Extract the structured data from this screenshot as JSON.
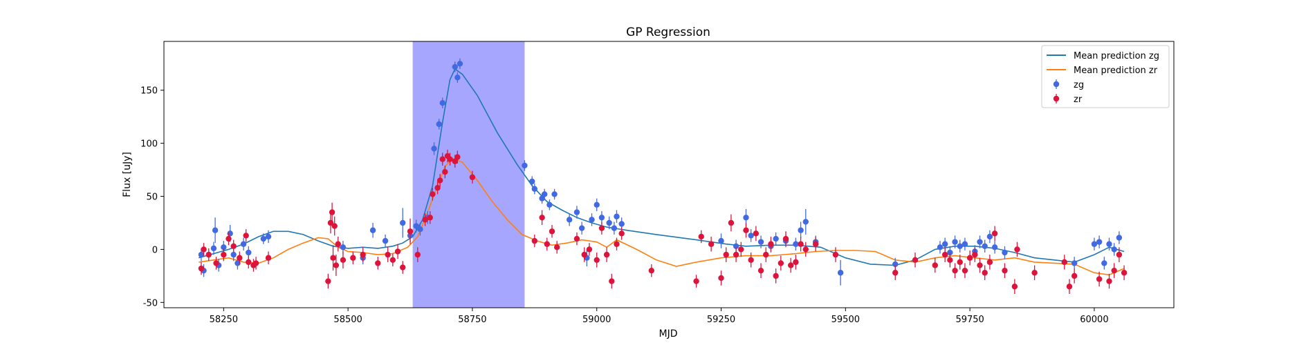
{
  "chart_data": {
    "type": "scatter",
    "title": "GP Regression",
    "xlabel": "MJD",
    "ylabel": "Flux [uJy]",
    "xlim": [
      58130,
      60160
    ],
    "ylim": [
      -55,
      196
    ],
    "xticks": [
      58250,
      58500,
      58750,
      59000,
      59250,
      59500,
      59750,
      60000
    ],
    "yticks": [
      -50,
      0,
      50,
      100,
      150
    ],
    "grid": false,
    "legend_position": "top-right",
    "highlight_span": {
      "x": [
        58630,
        58855
      ],
      "color": "#8080ff"
    },
    "colors": {
      "zg": "#4169e1",
      "zr": "#dc143c",
      "mean_zg": "#1f77b4",
      "mean_zr": "#ff7f0e"
    },
    "legend": [
      {
        "label": "Mean prediction zg",
        "kind": "line",
        "color": "#1f77b4"
      },
      {
        "label": "Mean prediction zr",
        "kind": "line",
        "color": "#ff7f0e"
      },
      {
        "label": "zg",
        "kind": "errorpoint",
        "color": "#4169e1"
      },
      {
        "label": "zr",
        "kind": "errorpoint",
        "color": "#dc143c"
      }
    ],
    "series": [
      {
        "name": "Mean prediction zg",
        "kind": "line",
        "color": "#1f77b4",
        "x": [
          58200,
          58230,
          58260,
          58290,
          58320,
          58350,
          58380,
          58410,
          58440,
          58470,
          58500,
          58530,
          58560,
          58590,
          58610,
          58630,
          58650,
          58670,
          58690,
          58705,
          58715,
          58730,
          58760,
          58800,
          58840,
          58870,
          58900,
          58930,
          58960,
          58990,
          59020,
          59060,
          59120,
          59200,
          59260,
          59300,
          59350,
          59400,
          59450,
          59500,
          59550,
          59600,
          59640,
          59680,
          59720,
          59760,
          59800,
          59840,
          59880,
          59920,
          59960,
          60000,
          60030,
          60060
        ],
        "y": [
          -8,
          -4,
          0,
          5,
          12,
          17,
          17,
          14,
          8,
          3,
          1,
          2,
          1,
          3,
          6,
          12,
          28,
          60,
          120,
          160,
          170,
          165,
          145,
          110,
          80,
          60,
          45,
          37,
          30,
          25,
          21,
          18,
          14,
          9,
          5,
          3,
          4,
          4,
          2,
          -8,
          -14,
          -15,
          -10,
          0,
          3,
          3,
          1,
          -3,
          -8,
          -10,
          -12,
          -5,
          2,
          -2
        ]
      },
      {
        "name": "Mean prediction zr",
        "kind": "line",
        "color": "#ff7f0e",
        "x": [
          58200,
          58230,
          58260,
          58290,
          58320,
          58350,
          58380,
          58410,
          58440,
          58460,
          58480,
          58500,
          58530,
          58560,
          58590,
          58620,
          58640,
          58660,
          58680,
          58695,
          58710,
          58730,
          58760,
          58790,
          58820,
          58850,
          58880,
          58910,
          58940,
          58970,
          59000,
          59020,
          59040,
          59080,
          59120,
          59160,
          59200,
          59250,
          59300,
          59350,
          59400,
          59440,
          59480,
          59520,
          59560,
          59600,
          59640,
          59680,
          59720,
          59760,
          59800,
          59840,
          59880,
          59920,
          59960,
          60000,
          60030,
          60060
        ],
        "y": [
          -12,
          -10,
          -8,
          -12,
          -13,
          -8,
          0,
          6,
          11,
          10,
          2,
          -2,
          -3,
          -5,
          -4,
          2,
          12,
          35,
          60,
          78,
          86,
          82,
          65,
          45,
          28,
          14,
          8,
          4,
          6,
          9,
          7,
          2,
          9,
          0,
          -10,
          -16,
          -12,
          -8,
          -6,
          -6,
          -4,
          -2,
          -1,
          -1,
          -2,
          -10,
          -12,
          -8,
          -6,
          -8,
          -10,
          -8,
          -12,
          -13,
          -14,
          -22,
          -24,
          -18
        ]
      },
      {
        "name": "zg",
        "kind": "errorpoints",
        "color": "#4169e1",
        "x": [
          58205,
          58210,
          58230,
          58233,
          58240,
          58250,
          58263,
          58270,
          58278,
          58290,
          58300,
          58330,
          58340,
          58490,
          58530,
          58550,
          58575,
          58610,
          58625,
          58637,
          58645,
          58660,
          58673,
          58683,
          58690,
          58715,
          58720,
          58725,
          58855,
          58870,
          58875,
          58890,
          58895,
          58905,
          58915,
          58945,
          58960,
          58970,
          58980,
          58990,
          59000,
          59010,
          59025,
          59035,
          59040,
          59050,
          59250,
          59280,
          59300,
          59310,
          59330,
          59350,
          59360,
          59380,
          59400,
          59410,
          59420,
          59440,
          59490,
          59600,
          59690,
          59700,
          59710,
          59720,
          59730,
          59740,
          59760,
          59770,
          59780,
          59790,
          59800,
          59820,
          59960,
          60000,
          60010,
          60020,
          60030,
          60040,
          60050
        ],
        "y": [
          -5,
          -20,
          1,
          18,
          -15,
          2,
          15,
          -5,
          -13,
          5,
          -3,
          10,
          12,
          2,
          -8,
          18,
          8,
          25,
          13,
          22,
          19,
          30,
          95,
          118,
          138,
          172,
          162,
          175,
          79,
          64,
          57,
          48,
          52,
          42,
          52,
          28,
          35,
          20,
          -8,
          28,
          42,
          30,
          25,
          20,
          31,
          24,
          8,
          3,
          30,
          13,
          7,
          3,
          10,
          8,
          5,
          18,
          26,
          7,
          -22,
          -14,
          2,
          5,
          -3,
          7,
          3,
          5,
          -2,
          7,
          3,
          12,
          2,
          -3,
          -13,
          5,
          7,
          -13,
          5,
          0,
          11
        ],
        "err": [
          6,
          6,
          6,
          12,
          6,
          6,
          8,
          6,
          6,
          6,
          6,
          5,
          6,
          6,
          6,
          7,
          6,
          14,
          6,
          6,
          6,
          6,
          6,
          5,
          5,
          5,
          5,
          5,
          5,
          5,
          5,
          5,
          5,
          5,
          5,
          6,
          6,
          6,
          8,
          6,
          6,
          6,
          6,
          6,
          6,
          6,
          7,
          6,
          8,
          6,
          6,
          6,
          6,
          6,
          6,
          8,
          12,
          6,
          12,
          6,
          6,
          6,
          6,
          6,
          6,
          6,
          6,
          6,
          6,
          6,
          6,
          6,
          6,
          6,
          6,
          6,
          6,
          6,
          6
        ]
      },
      {
        "name": "zr",
        "kind": "errorpoints",
        "color": "#dc143c",
        "x": [
          58205,
          58210,
          58220,
          58235,
          58250,
          58260,
          58270,
          58282,
          58295,
          58300,
          58310,
          58315,
          58340,
          58460,
          58465,
          58468,
          58470,
          58473,
          58476,
          58480,
          58490,
          58510,
          58530,
          58560,
          58580,
          58590,
          58600,
          58610,
          58625,
          58640,
          58655,
          58665,
          58670,
          58680,
          58685,
          58690,
          58695,
          58700,
          58705,
          58715,
          58720,
          58750,
          58875,
          58890,
          58900,
          58910,
          58920,
          58960,
          58975,
          58985,
          59000,
          59010,
          59020,
          59030,
          59040,
          59050,
          59110,
          59200,
          59210,
          59230,
          59250,
          59260,
          59270,
          59280,
          59290,
          59300,
          59310,
          59320,
          59330,
          59340,
          59350,
          59360,
          59370,
          59380,
          59390,
          59400,
          59410,
          59420,
          59440,
          59480,
          59600,
          59640,
          59680,
          59700,
          59710,
          59720,
          59730,
          59740,
          59750,
          59760,
          59770,
          59780,
          59790,
          59800,
          59820,
          59840,
          59845,
          59880,
          59940,
          59950,
          59960,
          60010,
          60030,
          60040,
          60050,
          60060
        ],
        "y": [
          -18,
          0,
          -5,
          -13,
          -5,
          10,
          3,
          -8,
          13,
          -12,
          -15,
          -13,
          -8,
          -30,
          25,
          35,
          -8,
          22,
          -15,
          5,
          -10,
          -8,
          -5,
          -13,
          -5,
          -10,
          -2,
          -17,
          17,
          -5,
          28,
          30,
          52,
          58,
          65,
          85,
          73,
          88,
          85,
          83,
          87,
          68,
          8,
          30,
          5,
          17,
          2,
          10,
          -5,
          0,
          -10,
          20,
          -5,
          -30,
          5,
          15,
          -20,
          -30,
          12,
          5,
          -27,
          -5,
          25,
          -5,
          0,
          18,
          -10,
          15,
          -20,
          -5,
          5,
          -25,
          -13,
          10,
          -15,
          -12,
          5,
          0,
          5,
          -5,
          -22,
          -10,
          -15,
          -5,
          -10,
          -20,
          -12,
          -20,
          -8,
          -5,
          -15,
          -22,
          -12,
          15,
          -20,
          -35,
          0,
          -22,
          -12,
          -35,
          -25,
          -28,
          -30,
          -20,
          -5,
          -22
        ],
        "err": [
          6,
          6,
          6,
          6,
          6,
          6,
          6,
          6,
          6,
          6,
          6,
          6,
          6,
          7,
          10,
          9,
          12,
          9,
          10,
          7,
          8,
          6,
          7,
          6,
          7,
          6,
          7,
          6,
          12,
          7,
          6,
          6,
          6,
          6,
          6,
          6,
          6,
          6,
          6,
          6,
          6,
          6,
          6,
          7,
          6,
          6,
          6,
          6,
          7,
          6,
          7,
          6,
          7,
          7,
          6,
          6,
          6,
          6,
          6,
          7,
          7,
          7,
          8,
          7,
          7,
          7,
          7,
          7,
          7,
          7,
          7,
          7,
          7,
          7,
          7,
          7,
          7,
          7,
          7,
          7,
          7,
          7,
          7,
          7,
          7,
          7,
          7,
          7,
          7,
          7,
          7,
          7,
          7,
          7,
          7,
          7,
          7,
          7,
          7,
          7,
          7,
          7,
          7,
          7,
          7,
          7
        ]
      }
    ]
  }
}
